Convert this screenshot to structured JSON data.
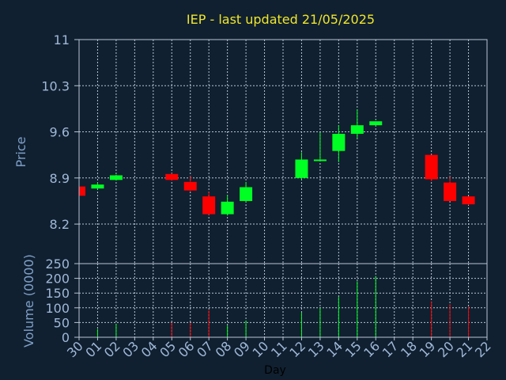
{
  "chart_data": {
    "type": "candlestick",
    "title": "IEP - last updated 21/05/2025",
    "xlabel": "Day",
    "colors": {
      "up": "#00ff22",
      "down": "#ff0000",
      "background": "#102030",
      "title": "#f0e62a",
      "tick": "#9fb8d8",
      "grid": "#b8c4d4"
    },
    "x_ticks": [
      "30",
      "01",
      "02",
      "03",
      "04",
      "05",
      "06",
      "07",
      "08",
      "09",
      "10",
      "11",
      "12",
      "13",
      "14",
      "15",
      "16",
      "17",
      "18",
      "19",
      "20",
      "21",
      "22"
    ],
    "price_panel": {
      "ylabel": "Price",
      "ylim": [
        7.6,
        11.0
      ],
      "y_ticks": [
        "11",
        "10.3",
        "9.6",
        "8.9",
        "8.2"
      ],
      "y_tick_values": [
        11.0,
        10.3,
        9.6,
        8.9,
        8.2
      ],
      "grid": true
    },
    "volume_panel": {
      "ylabel": "Volume (0000)",
      "ylim": [
        0,
        250
      ],
      "y_ticks": [
        "250",
        "200",
        "150",
        "100",
        "50",
        "0"
      ],
      "y_tick_values": [
        250,
        200,
        150,
        100,
        50,
        0
      ],
      "grid": true
    },
    "candles": [
      {
        "day": "30",
        "open": 8.77,
        "close": 8.63,
        "high": 8.77,
        "low": 8.63,
        "volume": 0
      },
      {
        "day": "01",
        "open": 8.74,
        "close": 8.8,
        "high": 8.83,
        "low": 8.73,
        "volume": 28
      },
      {
        "day": "02",
        "open": 8.87,
        "close": 8.94,
        "high": 8.95,
        "low": 8.86,
        "volume": 46
      },
      {
        "day": "05",
        "open": 8.96,
        "close": 8.87,
        "high": 8.97,
        "low": 8.86,
        "volume": 50
      },
      {
        "day": "06",
        "open": 8.84,
        "close": 8.71,
        "high": 8.93,
        "low": 8.7,
        "volume": 49
      },
      {
        "day": "07",
        "open": 8.62,
        "close": 8.35,
        "high": 8.69,
        "low": 8.34,
        "volume": 92
      },
      {
        "day": "08",
        "open": 8.35,
        "close": 8.54,
        "high": 8.64,
        "low": 8.33,
        "volume": 40
      },
      {
        "day": "09",
        "open": 8.55,
        "close": 8.76,
        "high": 8.84,
        "low": 8.54,
        "volume": 57
      },
      {
        "day": "12",
        "open": 8.9,
        "close": 9.18,
        "high": 9.29,
        "low": 8.88,
        "volume": 84
      },
      {
        "day": "13",
        "open": 9.16,
        "close": 9.18,
        "high": 9.59,
        "low": 9.16,
        "volume": 100
      },
      {
        "day": "14",
        "open": 9.31,
        "close": 9.57,
        "high": 9.7,
        "low": 9.14,
        "volume": 137
      },
      {
        "day": "15",
        "open": 9.57,
        "close": 9.7,
        "high": 9.94,
        "low": 9.5,
        "volume": 190
      },
      {
        "day": "16",
        "open": 9.7,
        "close": 9.76,
        "high": 9.76,
        "low": 9.7,
        "volume": 208
      },
      {
        "day": "19",
        "open": 9.25,
        "close": 8.88,
        "high": 9.25,
        "low": 8.85,
        "volume": 122
      },
      {
        "day": "20",
        "open": 8.83,
        "close": 8.55,
        "high": 8.92,
        "low": 8.55,
        "volume": 113
      },
      {
        "day": "21",
        "open": 8.62,
        "close": 8.5,
        "high": 8.62,
        "low": 8.49,
        "volume": 104
      }
    ]
  }
}
